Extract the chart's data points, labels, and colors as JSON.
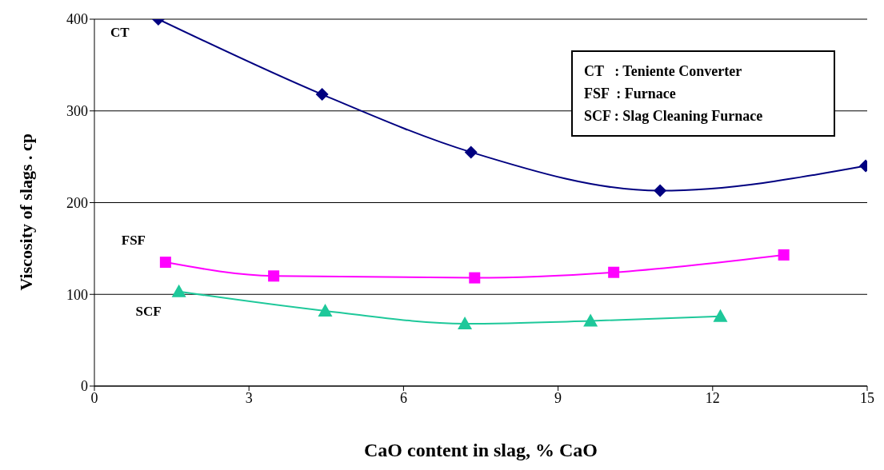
{
  "chart_data": {
    "type": "line",
    "xlabel": "CaO content in slag, % CaO",
    "ylabel": "Viscosity of slags . cp",
    "xlim": [
      0,
      15
    ],
    "xticks": [
      0,
      3,
      6,
      9,
      12,
      15
    ],
    "ylim": [
      0,
      400
    ],
    "yticks": [
      0,
      100,
      200,
      300,
      400
    ],
    "grid": "y",
    "legend": false,
    "annotations": [
      "CT   : Teniente Converter",
      "FSF  : Furnace",
      "SCF : Slag Cleaning Furnace"
    ],
    "series": [
      {
        "name": "CT",
        "color": "#000080",
        "marker": "diamond",
        "x": [
          1.24,
          4.42,
          7.31,
          10.98,
          14.97
        ],
        "values": [
          400,
          318,
          255,
          213,
          240
        ]
      },
      {
        "name": "FSF",
        "color": "#ff00ff",
        "marker": "square",
        "x": [
          1.38,
          3.48,
          7.38,
          10.08,
          13.38
        ],
        "values": [
          135,
          120,
          118,
          124,
          143
        ]
      },
      {
        "name": "SCF",
        "color": "#1ec89a",
        "marker": "triangle",
        "x": [
          1.64,
          4.48,
          7.19,
          9.63,
          12.15
        ],
        "values": [
          103,
          82,
          68,
          71,
          76
        ]
      }
    ]
  }
}
